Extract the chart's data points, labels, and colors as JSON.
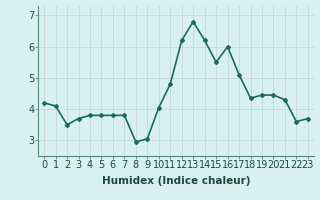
{
  "x": [
    0,
    1,
    2,
    3,
    4,
    5,
    6,
    7,
    8,
    9,
    10,
    11,
    12,
    13,
    14,
    15,
    16,
    17,
    18,
    19,
    20,
    21,
    22,
    23
  ],
  "y": [
    4.2,
    4.1,
    3.5,
    3.7,
    3.8,
    3.8,
    3.8,
    3.8,
    2.95,
    3.05,
    4.05,
    4.8,
    6.2,
    6.8,
    6.2,
    5.5,
    6.0,
    5.1,
    4.35,
    4.45,
    4.45,
    4.3,
    3.6,
    3.7
  ],
  "line_color": "#1a6b5a",
  "marker": "D",
  "marker_size": 2,
  "bg_color": "#d8f0f0",
  "grid_color": "#c8d8d0",
  "xlabel": "Humidex (Indice chaleur)",
  "ylabel_ticks": [
    3,
    4,
    5,
    6,
    7
  ],
  "ylim": [
    2.5,
    7.3
  ],
  "xlim": [
    -0.5,
    23.5
  ],
  "xlabel_fontsize": 7.5,
  "tick_fontsize": 7,
  "line_width": 1.2
}
